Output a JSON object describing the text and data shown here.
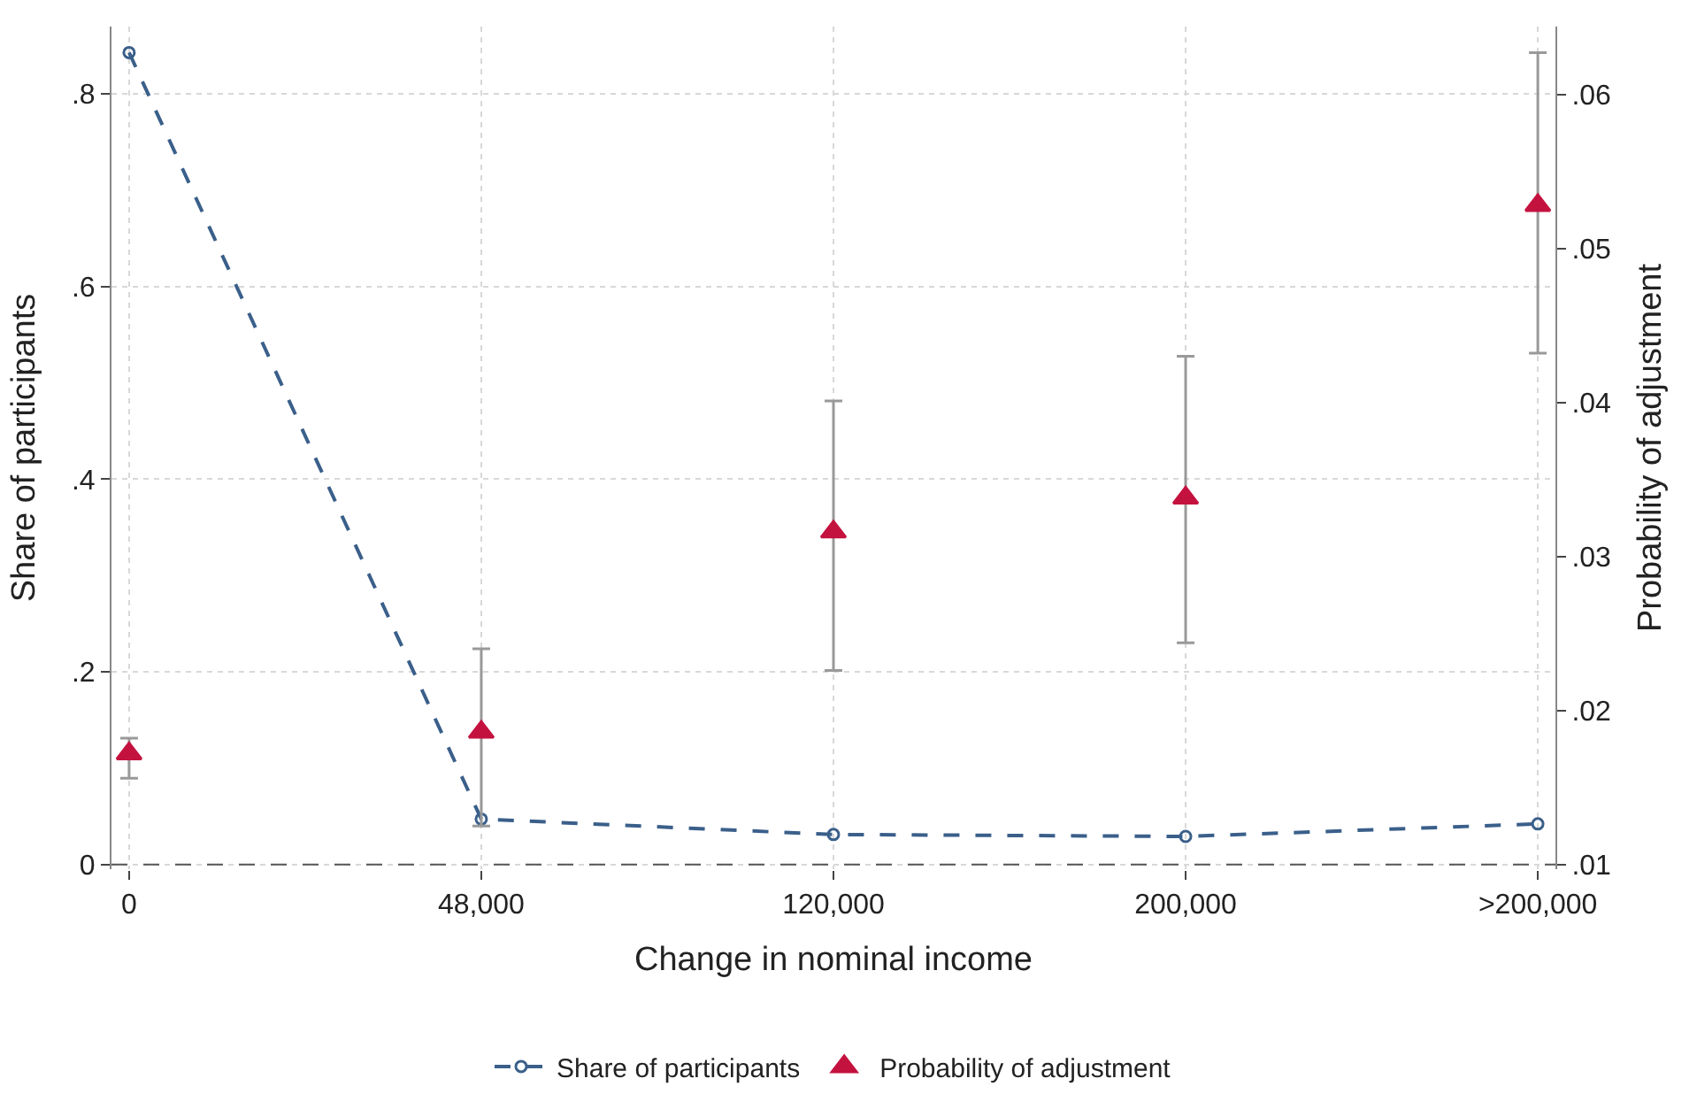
{
  "chart_data": {
    "type": "line",
    "xlabel": "Change in nominal income",
    "ylabel": "Share of participants",
    "y2label": "Probability of adjustment",
    "categories": [
      "0",
      "48,000",
      "120,000",
      "200,000",
      ">200,000"
    ],
    "series": [
      {
        "name": "Share of participants",
        "color": "#3a5f8a",
        "marker": "circle",
        "line_style": "dashed",
        "values": [
          0.843,
          0.047,
          0.031,
          0.029,
          0.042
        ]
      },
      {
        "name": "Probability of adjustment",
        "type": "scatter",
        "axis": "y2",
        "color": "#c4123f",
        "marker": "triangle",
        "values": [
          0.0172,
          0.0186,
          0.0316,
          0.0338,
          0.0528
        ],
        "errors": [
          [
            0.0156,
            0.0182
          ],
          [
            0.0125,
            0.024
          ],
          [
            0.0226,
            0.0401
          ],
          [
            0.0244,
            0.043
          ],
          [
            0.0432,
            0.0627
          ]
        ]
      }
    ],
    "ylim": [
      -0.005,
      0.87
    ],
    "yticks": [
      {
        "value": 0,
        "label": "0"
      },
      {
        "value": 0.2,
        "label": ".2"
      },
      {
        "value": 0.4,
        "label": ".4"
      },
      {
        "value": 0.6,
        "label": ".6"
      },
      {
        "value": 0.8,
        "label": ".8"
      }
    ],
    "y2lim": [
      0.0097,
      0.0644
    ],
    "y2ticks": [
      {
        "value": 0.01,
        "label": ".01"
      },
      {
        "value": 0.02,
        "label": ".02"
      },
      {
        "value": 0.03,
        "label": ".03"
      },
      {
        "value": 0.04,
        "label": ".04"
      },
      {
        "value": 0.05,
        "label": ".05"
      },
      {
        "value": 0.06,
        "label": ".06"
      }
    ],
    "ref_lines": [
      {
        "axis": "y2",
        "value": 0.01,
        "color": "#555555",
        "line_style": "dashed"
      }
    ],
    "grid": true,
    "legend": "bottom"
  }
}
